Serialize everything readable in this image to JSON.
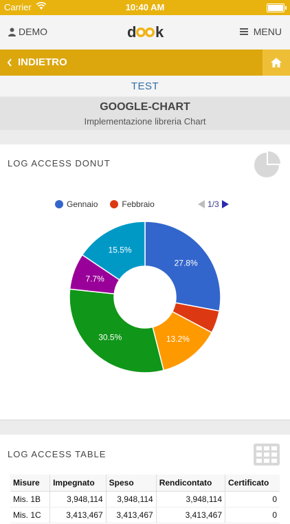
{
  "status_bar": {
    "carrier": "Carrier",
    "time": "10:40 AM"
  },
  "header": {
    "user_label": "DEMO",
    "menu_label": "MENU",
    "logo_text": "dook"
  },
  "nav": {
    "back_label": "INDIETRO"
  },
  "section": {
    "label": "TEST"
  },
  "page": {
    "title": "GOOGLE-CHART",
    "subtitle": "Implementazione libreria Chart"
  },
  "donut_card": {
    "title": "LOG ACCESS DONUT",
    "legend": [
      {
        "label": "Gennaio",
        "color": "#3366cc"
      },
      {
        "label": "Febbraio",
        "color": "#dc3912"
      }
    ],
    "pager": "1/3"
  },
  "chart_data": {
    "type": "pie",
    "donut": true,
    "slices": [
      {
        "label": "27.8%",
        "value": 27.8,
        "color": "#3366cc"
      },
      {
        "label": "",
        "value": 4.8,
        "color": "#dc3912"
      },
      {
        "label": "13.2%",
        "value": 13.2,
        "color": "#ff9900"
      },
      {
        "label": "30.5%",
        "value": 30.5,
        "color": "#109618"
      },
      {
        "label": "7.7%",
        "value": 7.7,
        "color": "#990099"
      },
      {
        "label": "15.5%",
        "value": 15.5,
        "color": "#0099c6"
      }
    ]
  },
  "table_card": {
    "title": "LOG ACCESS TABLE",
    "columns": [
      "Misure",
      "Impegnato",
      "Speso",
      "Rendicontato",
      "Certificato"
    ],
    "rows": [
      [
        "Mis. 1B",
        "3,948,114",
        "3,948,114",
        "3,948,114",
        "0"
      ],
      [
        "Mis. 1C",
        "3,413,467",
        "3,413,467",
        "3,413,467",
        "0"
      ]
    ]
  }
}
